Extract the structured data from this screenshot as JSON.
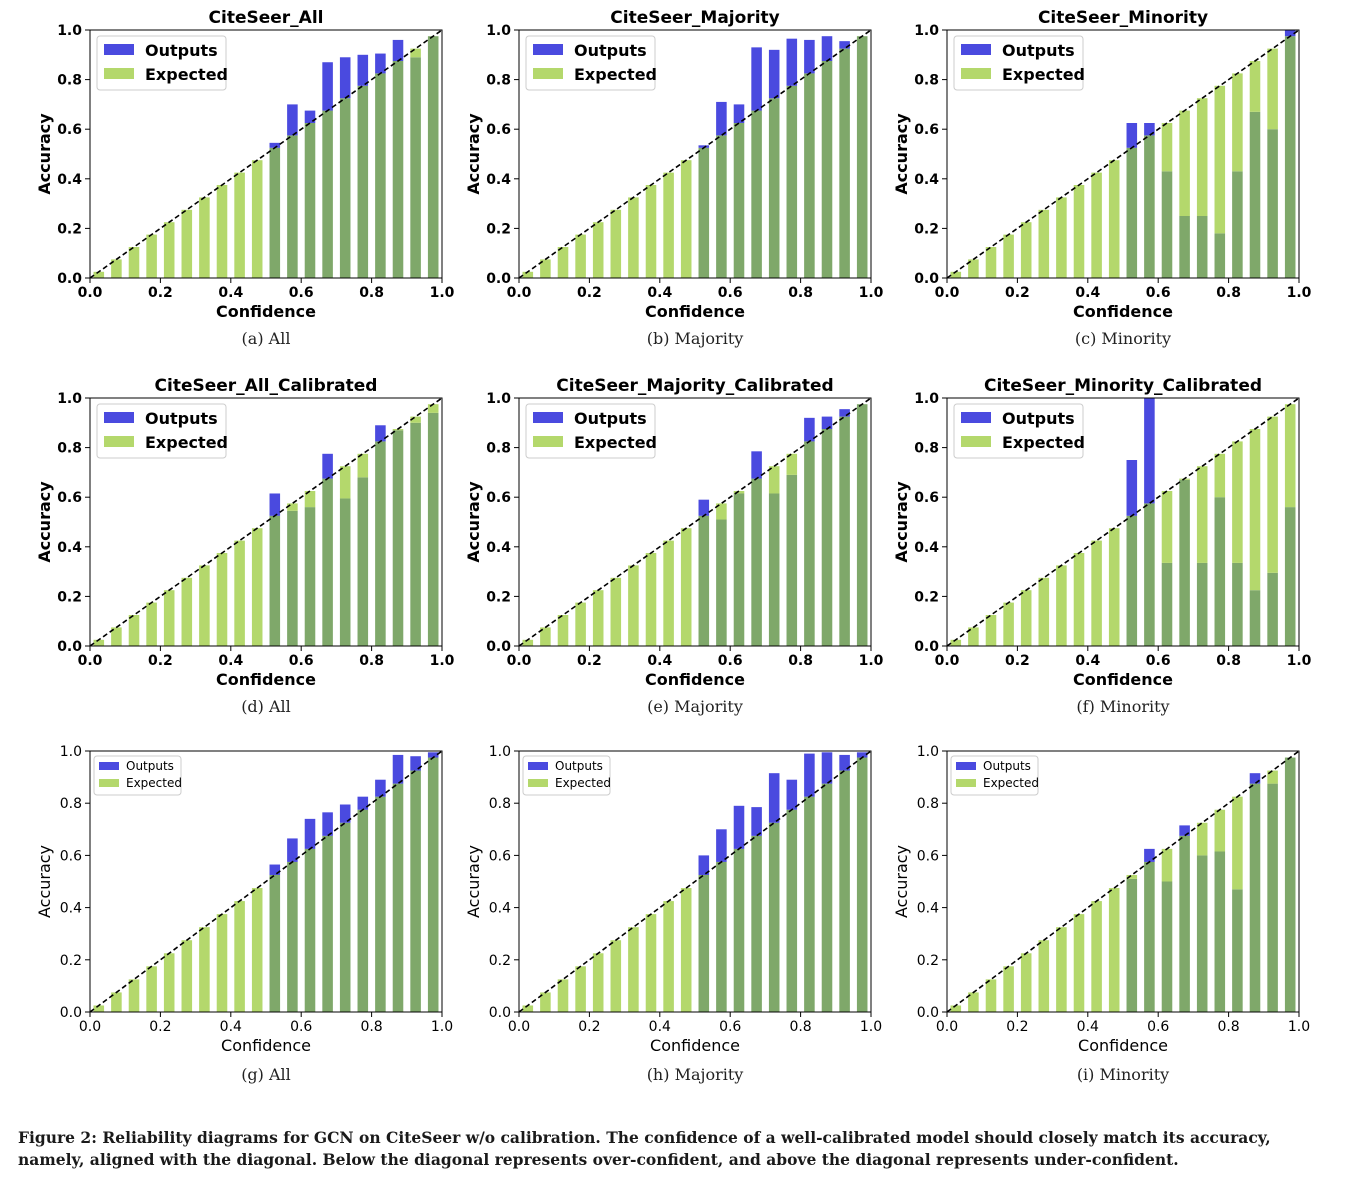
{
  "colors": {
    "outputs": "#4a4adf",
    "expected": "#b4d86c",
    "overlap": "#7fa86a",
    "diagonal": "#000000"
  },
  "figure_caption": "Figure 2: Reliability diagrams for GCN on CiteSeer w/o calibration. The confidence of a well-calibrated model should closely match its accuracy, namely, aligned with the diagonal. Below the diagonal represents over-confident, and above the diagonal represents under-confident.",
  "chart_data": [
    {
      "type": "bar",
      "id": "a",
      "caption": "(a)  All",
      "title": "CiteSeer_All",
      "xlabel": "Confidence",
      "ylabel": "Accuracy",
      "xlim": [
        0,
        1
      ],
      "ylim": [
        0,
        1
      ],
      "ticks": [
        "0.0",
        "0.2",
        "0.4",
        "0.6",
        "0.8",
        "1.0"
      ],
      "legend": [
        "Outputs",
        "Expected"
      ],
      "legend_location": "upper-left",
      "legend_style": "bold",
      "series": [
        {
          "name": "Outputs",
          "values": [
            0,
            0,
            0,
            0,
            0,
            0,
            0,
            0,
            0,
            0,
            0.545,
            0.7,
            0.675,
            0.87,
            0.89,
            0.9,
            0.905,
            0.96,
            0.89,
            0.975
          ]
        },
        {
          "name": "Expected",
          "values": [
            0.025,
            0.075,
            0.125,
            0.175,
            0.225,
            0.275,
            0.325,
            0.375,
            0.425,
            0.475,
            0.525,
            0.575,
            0.625,
            0.675,
            0.725,
            0.775,
            0.825,
            0.875,
            0.925,
            0.975
          ]
        }
      ]
    },
    {
      "type": "bar",
      "id": "b",
      "caption": "(b)  Majority",
      "title": "CiteSeer_Majority",
      "xlabel": "Confidence",
      "ylabel": "Accuracy",
      "xlim": [
        0,
        1
      ],
      "ylim": [
        0,
        1
      ],
      "ticks": [
        "0.0",
        "0.2",
        "0.4",
        "0.6",
        "0.8",
        "1.0"
      ],
      "legend": [
        "Outputs",
        "Expected"
      ],
      "legend_location": "upper-left",
      "legend_style": "bold",
      "series": [
        {
          "name": "Outputs",
          "values": [
            0,
            0,
            0,
            0,
            0,
            0,
            0,
            0,
            0,
            0,
            0.535,
            0.71,
            0.7,
            0.93,
            0.92,
            0.965,
            0.96,
            0.975,
            0.955,
            0.975
          ]
        },
        {
          "name": "Expected",
          "values": [
            0.025,
            0.075,
            0.125,
            0.175,
            0.225,
            0.275,
            0.325,
            0.375,
            0.425,
            0.475,
            0.525,
            0.575,
            0.625,
            0.675,
            0.725,
            0.775,
            0.825,
            0.875,
            0.925,
            0.975
          ]
        }
      ]
    },
    {
      "type": "bar",
      "id": "c",
      "caption": "(c)  Minority",
      "title": "CiteSeer_Minority",
      "xlabel": "Confidence",
      "ylabel": "Accuracy",
      "xlim": [
        0,
        1
      ],
      "ylim": [
        0,
        1
      ],
      "ticks": [
        "0.0",
        "0.2",
        "0.4",
        "0.6",
        "0.8",
        "1.0"
      ],
      "legend": [
        "Outputs",
        "Expected"
      ],
      "legend_location": "upper-left",
      "legend_style": "bold",
      "series": [
        {
          "name": "Outputs",
          "values": [
            0,
            0,
            0,
            0,
            0,
            0,
            0,
            0,
            0,
            0,
            0.625,
            0.625,
            0.43,
            0.25,
            0.25,
            0.18,
            0.43,
            0.67,
            0.6,
            1.0
          ]
        },
        {
          "name": "Expected",
          "values": [
            0.025,
            0.075,
            0.125,
            0.175,
            0.225,
            0.275,
            0.325,
            0.375,
            0.425,
            0.475,
            0.525,
            0.575,
            0.625,
            0.675,
            0.725,
            0.775,
            0.825,
            0.875,
            0.925,
            0.975
          ]
        }
      ]
    },
    {
      "type": "bar",
      "id": "d",
      "caption": "(d)  All",
      "title": "CiteSeer_All_Calibrated",
      "xlabel": "Confidence",
      "ylabel": "Accuracy",
      "xlim": [
        0,
        1
      ],
      "ylim": [
        0,
        1
      ],
      "ticks": [
        "0.0",
        "0.2",
        "0.4",
        "0.6",
        "0.8",
        "1.0"
      ],
      "legend": [
        "Outputs",
        "Expected"
      ],
      "legend_location": "upper-left",
      "legend_style": "bold",
      "series": [
        {
          "name": "Outputs",
          "values": [
            0,
            0,
            0,
            0,
            0,
            0,
            0,
            0,
            0,
            0,
            0.615,
            0.545,
            0.56,
            0.775,
            0.595,
            0.68,
            0.89,
            0.87,
            0.9,
            0.94
          ]
        },
        {
          "name": "Expected",
          "values": [
            0.025,
            0.075,
            0.125,
            0.175,
            0.225,
            0.275,
            0.325,
            0.375,
            0.425,
            0.475,
            0.525,
            0.575,
            0.625,
            0.675,
            0.725,
            0.775,
            0.825,
            0.875,
            0.925,
            0.975
          ]
        }
      ]
    },
    {
      "type": "bar",
      "id": "e",
      "caption": "(e)  Majority",
      "title": "CiteSeer_Majority_Calibrated",
      "xlabel": "Confidence",
      "ylabel": "Accuracy",
      "xlim": [
        0,
        1
      ],
      "ylim": [
        0,
        1
      ],
      "ticks": [
        "0.0",
        "0.2",
        "0.4",
        "0.6",
        "0.8",
        "1.0"
      ],
      "legend": [
        "Outputs",
        "Expected"
      ],
      "legend_location": "upper-left",
      "legend_style": "bold",
      "series": [
        {
          "name": "Outputs",
          "values": [
            0,
            0,
            0,
            0,
            0,
            0,
            0,
            0,
            0,
            0,
            0.59,
            0.51,
            0.615,
            0.785,
            0.615,
            0.69,
            0.92,
            0.925,
            0.955,
            0.975
          ]
        },
        {
          "name": "Expected",
          "values": [
            0.025,
            0.075,
            0.125,
            0.175,
            0.225,
            0.275,
            0.325,
            0.375,
            0.425,
            0.475,
            0.525,
            0.575,
            0.625,
            0.675,
            0.725,
            0.775,
            0.825,
            0.875,
            0.925,
            0.975
          ]
        }
      ]
    },
    {
      "type": "bar",
      "id": "f",
      "caption": "(f)  Minority",
      "title": "CiteSeer_Minority_Calibrated",
      "xlabel": "Confidence",
      "ylabel": "Accuracy",
      "xlim": [
        0,
        1
      ],
      "ylim": [
        0,
        1
      ],
      "ticks": [
        "0.0",
        "0.2",
        "0.4",
        "0.6",
        "0.8",
        "1.0"
      ],
      "legend": [
        "Outputs",
        "Expected"
      ],
      "legend_location": "upper-left",
      "legend_style": "bold",
      "series": [
        {
          "name": "Outputs",
          "values": [
            0,
            0,
            0,
            0,
            0,
            0,
            0,
            0,
            0,
            0,
            0.75,
            1.0,
            0.335,
            0.67,
            0.335,
            0.6,
            0.335,
            0.225,
            0.295,
            0.56
          ]
        },
        {
          "name": "Expected",
          "values": [
            0.025,
            0.075,
            0.125,
            0.175,
            0.225,
            0.275,
            0.325,
            0.375,
            0.425,
            0.475,
            0.525,
            0.575,
            0.625,
            0.675,
            0.725,
            0.775,
            0.825,
            0.875,
            0.925,
            0.975
          ]
        }
      ]
    },
    {
      "type": "bar",
      "id": "g",
      "caption": "(g)  All",
      "title": "",
      "xlabel": "Confidence",
      "ylabel": "Accuracy",
      "xlim": [
        0,
        1
      ],
      "ylim": [
        0,
        1
      ],
      "ticks": [
        "0.0",
        "0.2",
        "0.4",
        "0.6",
        "0.8",
        "1.0"
      ],
      "legend": [
        "Outputs",
        "Expected"
      ],
      "legend_location": "upper-left",
      "legend_style": "small",
      "series": [
        {
          "name": "Outputs",
          "values": [
            0,
            0,
            0,
            0,
            0,
            0,
            0,
            0,
            0,
            0,
            0.565,
            0.665,
            0.74,
            0.765,
            0.795,
            0.825,
            0.89,
            0.985,
            0.98,
            0.995
          ]
        },
        {
          "name": "Expected",
          "values": [
            0.025,
            0.075,
            0.125,
            0.175,
            0.225,
            0.275,
            0.325,
            0.375,
            0.425,
            0.475,
            0.525,
            0.575,
            0.625,
            0.675,
            0.725,
            0.775,
            0.825,
            0.875,
            0.925,
            0.975
          ]
        }
      ]
    },
    {
      "type": "bar",
      "id": "h",
      "caption": "(h)  Majority",
      "title": "",
      "xlabel": "Confidence",
      "ylabel": "Accuracy",
      "xlim": [
        0,
        1
      ],
      "ylim": [
        0,
        1
      ],
      "ticks": [
        "0.0",
        "0.2",
        "0.4",
        "0.6",
        "0.8",
        "1.0"
      ],
      "legend": [
        "Outputs",
        "Expected"
      ],
      "legend_location": "upper-left",
      "legend_style": "small",
      "series": [
        {
          "name": "Outputs",
          "values": [
            0,
            0,
            0,
            0,
            0,
            0,
            0,
            0,
            0,
            0,
            0.6,
            0.7,
            0.79,
            0.785,
            0.915,
            0.89,
            0.99,
            0.995,
            0.985,
            0.995
          ]
        },
        {
          "name": "Expected",
          "values": [
            0.025,
            0.075,
            0.125,
            0.175,
            0.225,
            0.275,
            0.325,
            0.375,
            0.425,
            0.475,
            0.525,
            0.575,
            0.625,
            0.675,
            0.725,
            0.775,
            0.825,
            0.875,
            0.925,
            0.975
          ]
        }
      ]
    },
    {
      "type": "bar",
      "id": "i",
      "caption": "(i)  Minority",
      "title": "",
      "xlabel": "Confidence",
      "ylabel": "Accuracy",
      "xlim": [
        0,
        1
      ],
      "ylim": [
        0,
        1
      ],
      "ticks": [
        "0.0",
        "0.2",
        "0.4",
        "0.6",
        "0.8",
        "1.0"
      ],
      "legend": [
        "Outputs",
        "Expected"
      ],
      "legend_location": "upper-left",
      "legend_style": "small",
      "series": [
        {
          "name": "Outputs",
          "values": [
            0,
            0,
            0,
            0,
            0,
            0,
            0,
            0,
            0,
            0,
            0.51,
            0.625,
            0.5,
            0.715,
            0.6,
            0.615,
            0.47,
            0.915,
            0.875,
            0.975
          ]
        },
        {
          "name": "Expected",
          "values": [
            0.025,
            0.075,
            0.125,
            0.175,
            0.225,
            0.275,
            0.325,
            0.375,
            0.425,
            0.475,
            0.525,
            0.575,
            0.625,
            0.675,
            0.725,
            0.775,
            0.825,
            0.875,
            0.925,
            0.975
          ]
        }
      ]
    }
  ]
}
